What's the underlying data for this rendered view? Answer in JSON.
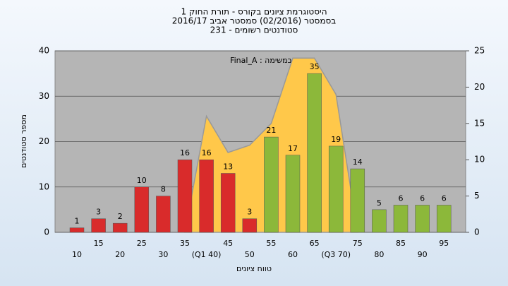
{
  "chart_data": {
    "type": "bar",
    "title": [
      "היסטוגרמת ציונים בקורס - תורת החוק 1",
      "בסמסטר  (02/2016)  סמסטר אביב 2016/17",
      "סטודנטים רשומים - 231"
    ],
    "ylabel": "מספר סטודנטים",
    "xlabel": "טווח ציונים",
    "annotation": "Final_A : במשימה",
    "categories": [
      "10",
      "15",
      "20",
      "25",
      "30",
      "35",
      "(Q1 40)",
      "45",
      "50",
      "55",
      "60",
      "65",
      "(Q3 70)",
      "75",
      "80",
      "85",
      "90",
      "95"
    ],
    "values": [
      1,
      3,
      2,
      10,
      8,
      16,
      16,
      13,
      3,
      21,
      17,
      35,
      19,
      14,
      5,
      6,
      6,
      6
    ],
    "colors": [
      "#d92b2b",
      "#d92b2b",
      "#d92b2b",
      "#d92b2b",
      "#d92b2b",
      "#d92b2b",
      "#d92b2b",
      "#d92b2b",
      "#d92b2b",
      "#8cb83a",
      "#8cb83a",
      "#8cb83a",
      "#8cb83a",
      "#8cb83a",
      "#8cb83a",
      "#8cb83a",
      "#8cb83a",
      "#8cb83a"
    ],
    "area": {
      "color": "#ffc84a",
      "axis": "y2",
      "values": [
        null,
        null,
        null,
        null,
        null,
        0,
        16,
        11,
        12,
        15,
        24,
        24,
        19,
        0,
        null,
        null,
        null,
        null
      ]
    },
    "ylim": [
      0,
      40
    ],
    "yticks": [
      0,
      10,
      20,
      30,
      40
    ],
    "y2lim": [
      0,
      25
    ],
    "y2ticks": [
      0,
      5,
      10,
      15,
      20,
      25
    ],
    "grid": true
  }
}
